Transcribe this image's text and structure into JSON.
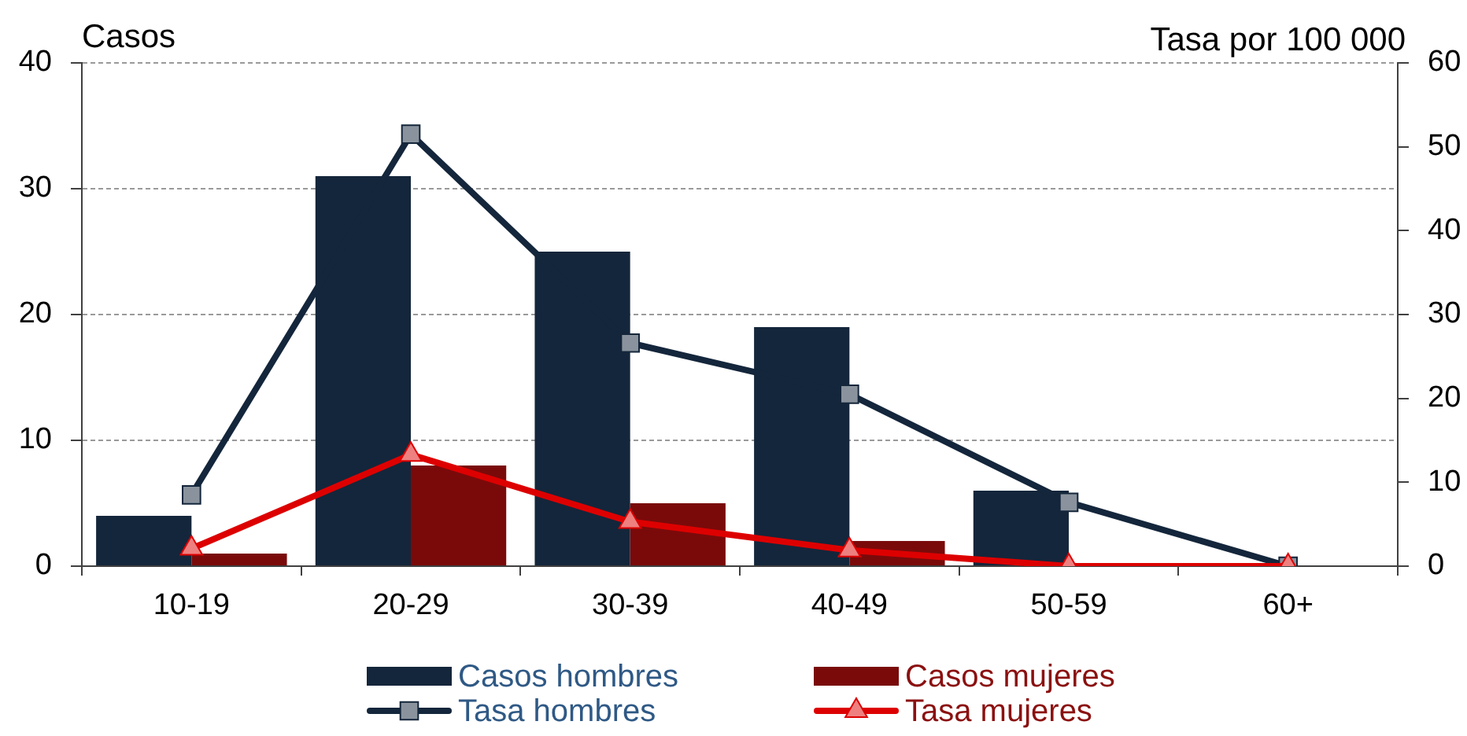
{
  "chart_data": {
    "type": "bar",
    "ylabel": "Casos",
    "y2label": "Tasa por 100 000",
    "categories": [
      "10-19",
      "20-29",
      "30-39",
      "40-49",
      "50-59",
      "60+"
    ],
    "series": [
      {
        "name": "Casos hombres",
        "color": "#14263b",
        "values": [
          4,
          31,
          25,
          19,
          6,
          0
        ]
      },
      {
        "name": "Casos mujeres",
        "color": "#7a0a0a",
        "values": [
          1,
          8,
          5,
          2,
          0,
          0
        ]
      },
      {
        "name": "Tasa hombres",
        "type": "line",
        "axis": "y2",
        "color": "#14263b",
        "marker": "square",
        "values": [
          8.5,
          51.5,
          26.6,
          20.5,
          7.6,
          0
        ]
      },
      {
        "name": "Tasa mujeres",
        "type": "line",
        "axis": "y2",
        "color": "#dd0000",
        "marker": "triangle",
        "values": [
          2.1,
          13.3,
          5.3,
          1.9,
          0,
          0
        ]
      }
    ],
    "ylim": [
      0,
      40
    ],
    "yticks": [
      0,
      10,
      20,
      30,
      40
    ],
    "y2lim": [
      0,
      60
    ],
    "y2ticks": [
      0,
      10,
      20,
      30,
      40,
      50,
      60
    ],
    "grid": "y",
    "legend": "bottom"
  }
}
